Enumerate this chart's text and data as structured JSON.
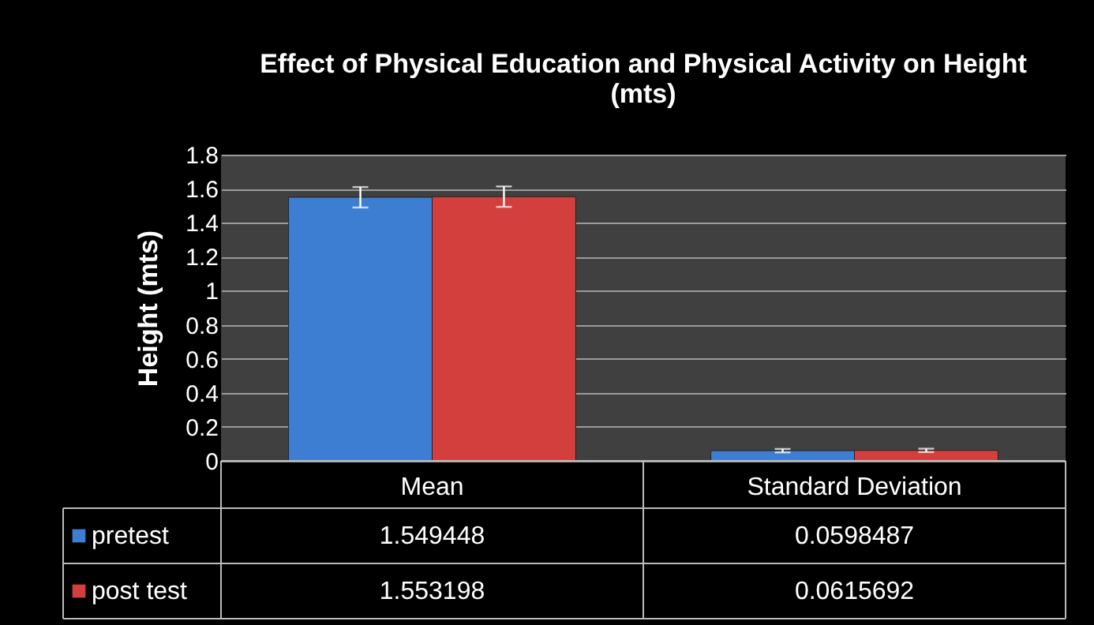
{
  "chart_data": {
    "type": "bar",
    "title": "Effect of Physical Education and Physical Activity on Height\n(mts)",
    "ylabel": "Height (mts)",
    "categories": [
      "Mean",
      "Standard Deviation"
    ],
    "series": [
      {
        "name": "pretest",
        "color": "#3e7ed2",
        "values": [
          1.549448,
          0.0598487
        ],
        "errors": [
          0.06,
          0.01
        ]
      },
      {
        "name": "post test",
        "color": "#d23f3d",
        "values": [
          1.553198,
          0.0615692
        ],
        "errors": [
          0.06,
          0.01
        ]
      }
    ],
    "ylim": [
      0,
      1.8
    ],
    "yticks": [
      0,
      0.2,
      0.4,
      0.6,
      0.8,
      1,
      1.2,
      1.4,
      1.6,
      1.8
    ],
    "grid": "y",
    "legend": "bottom left",
    "data_labels": true
  }
}
